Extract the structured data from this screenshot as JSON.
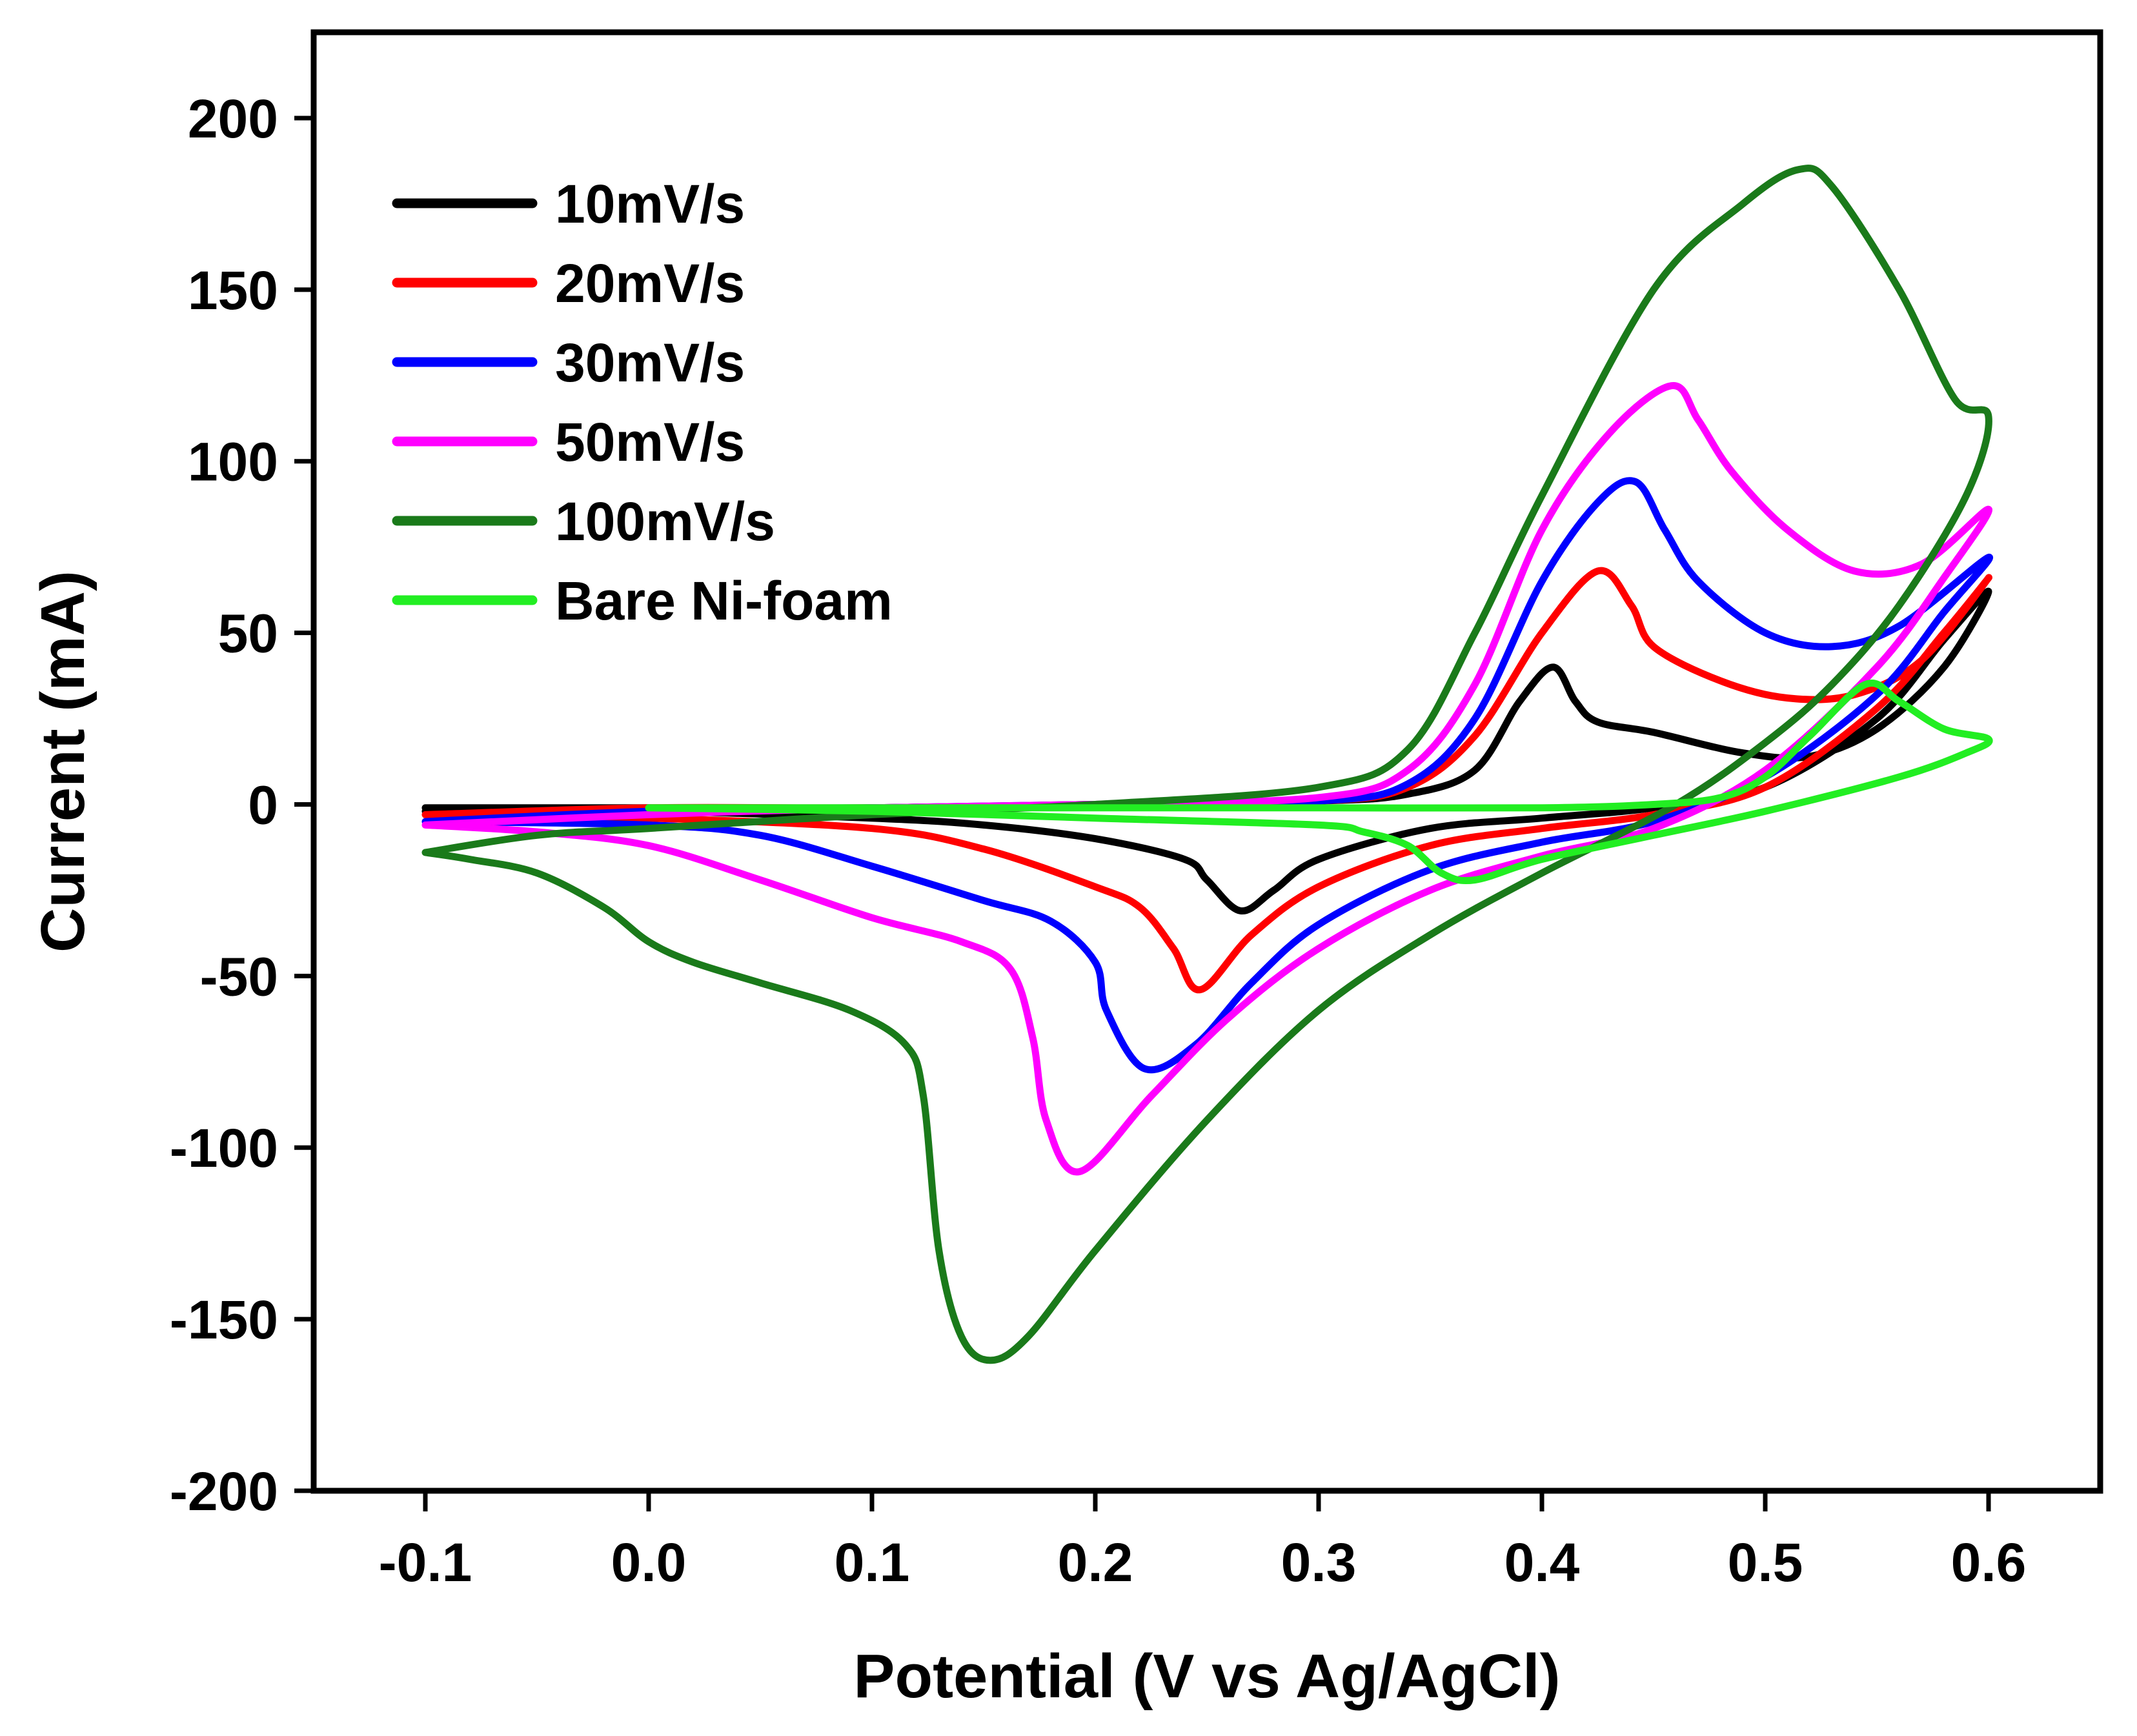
{
  "chart_data": {
    "type": "line",
    "title": "",
    "xlabel": "Potential (V vs Ag/AgCl)",
    "ylabel": "Current (mA)",
    "xlim": [
      -0.15,
      0.65
    ],
    "ylim": [
      -200,
      225
    ],
    "x_ticks": [
      -0.1,
      0.0,
      0.1,
      0.2,
      0.3,
      0.4,
      0.5,
      0.6
    ],
    "x_tick_labels": [
      "-0.1",
      "0.0",
      "0.1",
      "0.2",
      "0.3",
      "0.4",
      "0.5",
      "0.6"
    ],
    "y_ticks": [
      -200,
      -150,
      -100,
      -50,
      0,
      50,
      100,
      150,
      200
    ],
    "y_tick_labels": [
      "-200",
      "-150",
      "-100",
      "-50",
      "0",
      "50",
      "100",
      "150",
      "200"
    ],
    "grid": false,
    "legend_position": "top-left",
    "series": [
      {
        "name": "10mV/s",
        "color": "#000000",
        "points": [
          [
            -0.1,
            -1
          ],
          [
            0.0,
            -1
          ],
          [
            0.1,
            -1
          ],
          [
            0.2,
            0
          ],
          [
            0.3,
            1
          ],
          [
            0.34,
            3
          ],
          [
            0.37,
            10
          ],
          [
            0.39,
            30
          ],
          [
            0.405,
            40
          ],
          [
            0.415,
            30
          ],
          [
            0.425,
            24
          ],
          [
            0.45,
            21
          ],
          [
            0.49,
            15
          ],
          [
            0.52,
            14
          ],
          [
            0.55,
            22
          ],
          [
            0.58,
            40
          ],
          [
            0.6,
            62
          ],
          [
            0.58,
            48
          ],
          [
            0.55,
            25
          ],
          [
            0.5,
            5
          ],
          [
            0.45,
            -1
          ],
          [
            0.4,
            -4
          ],
          [
            0.35,
            -7
          ],
          [
            0.3,
            -16
          ],
          [
            0.28,
            -25
          ],
          [
            0.265,
            -31
          ],
          [
            0.25,
            -22
          ],
          [
            0.24,
            -16
          ],
          [
            0.2,
            -10
          ],
          [
            0.15,
            -6
          ],
          [
            0.1,
            -4
          ],
          [
            0.0,
            -2
          ],
          [
            -0.1,
            -2
          ]
        ]
      },
      {
        "name": "20mV/s",
        "color": "#ff0000",
        "points": [
          [
            -0.1,
            -3
          ],
          [
            0.0,
            -1
          ],
          [
            0.1,
            -1
          ],
          [
            0.2,
            0
          ],
          [
            0.3,
            1
          ],
          [
            0.34,
            5
          ],
          [
            0.37,
            20
          ],
          [
            0.4,
            50
          ],
          [
            0.425,
            68
          ],
          [
            0.44,
            58
          ],
          [
            0.45,
            46
          ],
          [
            0.48,
            36
          ],
          [
            0.51,
            31
          ],
          [
            0.54,
            32
          ],
          [
            0.57,
            42
          ],
          [
            0.6,
            66
          ],
          [
            0.58,
            50
          ],
          [
            0.55,
            28
          ],
          [
            0.5,
            5
          ],
          [
            0.45,
            -3
          ],
          [
            0.4,
            -7
          ],
          [
            0.35,
            -12
          ],
          [
            0.3,
            -24
          ],
          [
            0.27,
            -38
          ],
          [
            0.247,
            -54
          ],
          [
            0.235,
            -42
          ],
          [
            0.22,
            -30
          ],
          [
            0.2,
            -24
          ],
          [
            0.15,
            -13
          ],
          [
            0.1,
            -7
          ],
          [
            0.0,
            -4
          ],
          [
            -0.1,
            -3
          ]
        ]
      },
      {
        "name": "30mV/s",
        "color": "#0000ff",
        "points": [
          [
            -0.1,
            -5
          ],
          [
            0.0,
            -2
          ],
          [
            0.1,
            -1
          ],
          [
            0.2,
            0
          ],
          [
            0.3,
            1
          ],
          [
            0.34,
            6
          ],
          [
            0.37,
            25
          ],
          [
            0.4,
            65
          ],
          [
            0.425,
            88
          ],
          [
            0.442,
            94
          ],
          [
            0.455,
            80
          ],
          [
            0.47,
            65
          ],
          [
            0.5,
            50
          ],
          [
            0.53,
            46
          ],
          [
            0.56,
            52
          ],
          [
            0.6,
            72
          ],
          [
            0.58,
            56
          ],
          [
            0.55,
            32
          ],
          [
            0.5,
            8
          ],
          [
            0.45,
            -5
          ],
          [
            0.4,
            -11
          ],
          [
            0.35,
            -19
          ],
          [
            0.3,
            -35
          ],
          [
            0.27,
            -52
          ],
          [
            0.245,
            -70
          ],
          [
            0.222,
            -77
          ],
          [
            0.205,
            -60
          ],
          [
            0.2,
            -46
          ],
          [
            0.18,
            -34
          ],
          [
            0.15,
            -28
          ],
          [
            0.1,
            -18
          ],
          [
            0.05,
            -9
          ],
          [
            0.0,
            -6
          ],
          [
            -0.1,
            -5
          ]
        ]
      },
      {
        "name": "50mV/s",
        "color": "#ff00ff",
        "points": [
          [
            -0.1,
            -6
          ],
          [
            0.0,
            -3
          ],
          [
            0.1,
            -1
          ],
          [
            0.2,
            0
          ],
          [
            0.3,
            2
          ],
          [
            0.34,
            10
          ],
          [
            0.37,
            35
          ],
          [
            0.4,
            80
          ],
          [
            0.43,
            108
          ],
          [
            0.458,
            122
          ],
          [
            0.47,
            112
          ],
          [
            0.485,
            97
          ],
          [
            0.51,
            80
          ],
          [
            0.54,
            68
          ],
          [
            0.57,
            70
          ],
          [
            0.6,
            86
          ],
          [
            0.58,
            66
          ],
          [
            0.55,
            40
          ],
          [
            0.5,
            10
          ],
          [
            0.45,
            -7
          ],
          [
            0.4,
            -15
          ],
          [
            0.35,
            -25
          ],
          [
            0.3,
            -42
          ],
          [
            0.26,
            -62
          ],
          [
            0.225,
            -85
          ],
          [
            0.193,
            -107
          ],
          [
            0.178,
            -92
          ],
          [
            0.172,
            -68
          ],
          [
            0.162,
            -48
          ],
          [
            0.14,
            -40
          ],
          [
            0.1,
            -33
          ],
          [
            0.05,
            -22
          ],
          [
            0.0,
            -12
          ],
          [
            -0.05,
            -8
          ],
          [
            -0.1,
            -6
          ]
        ]
      },
      {
        "name": "100mV/s",
        "color": "#1a7a1a",
        "points": [
          [
            -0.1,
            -14
          ],
          [
            -0.05,
            -9
          ],
          [
            0.0,
            -7
          ],
          [
            0.1,
            -3
          ],
          [
            0.2,
            0
          ],
          [
            0.3,
            5
          ],
          [
            0.34,
            16
          ],
          [
            0.37,
            50
          ],
          [
            0.4,
            90
          ],
          [
            0.45,
            150
          ],
          [
            0.49,
            175
          ],
          [
            0.515,
            185
          ],
          [
            0.53,
            180
          ],
          [
            0.56,
            150
          ],
          [
            0.585,
            118
          ],
          [
            0.6,
            113
          ],
          [
            0.59,
            90
          ],
          [
            0.56,
            58
          ],
          [
            0.53,
            35
          ],
          [
            0.5,
            18
          ],
          [
            0.46,
            0
          ],
          [
            0.4,
            -20
          ],
          [
            0.35,
            -38
          ],
          [
            0.3,
            -60
          ],
          [
            0.25,
            -92
          ],
          [
            0.2,
            -130
          ],
          [
            0.17,
            -155
          ],
          [
            0.153,
            -162
          ],
          [
            0.14,
            -155
          ],
          [
            0.13,
            -130
          ],
          [
            0.123,
            -85
          ],
          [
            0.115,
            -70
          ],
          [
            0.09,
            -60
          ],
          [
            0.05,
            -52
          ],
          [
            0.02,
            -46
          ],
          [
            0.0,
            -40
          ],
          [
            -0.02,
            -30
          ],
          [
            -0.05,
            -20
          ],
          [
            -0.08,
            -16
          ],
          [
            -0.1,
            -14
          ]
        ]
      },
      {
        "name": "Bare Ni-foam",
        "color": "#22ee22",
        "points": [
          [
            0.0,
            -1
          ],
          [
            0.1,
            -1
          ],
          [
            0.2,
            -1
          ],
          [
            0.3,
            -1
          ],
          [
            0.4,
            -1
          ],
          [
            0.45,
            0
          ],
          [
            0.48,
            2
          ],
          [
            0.5,
            8
          ],
          [
            0.52,
            20
          ],
          [
            0.545,
            35
          ],
          [
            0.56,
            30
          ],
          [
            0.58,
            22
          ],
          [
            0.6,
            19
          ],
          [
            0.59,
            15
          ],
          [
            0.56,
            8
          ],
          [
            0.5,
            -2
          ],
          [
            0.45,
            -9
          ],
          [
            0.4,
            -16
          ],
          [
            0.37,
            -22
          ],
          [
            0.355,
            -20
          ],
          [
            0.34,
            -12
          ],
          [
            0.32,
            -8
          ],
          [
            0.3,
            -6
          ],
          [
            0.2,
            -4
          ],
          [
            0.1,
            -2
          ],
          [
            0.0,
            -1
          ]
        ]
      }
    ]
  }
}
